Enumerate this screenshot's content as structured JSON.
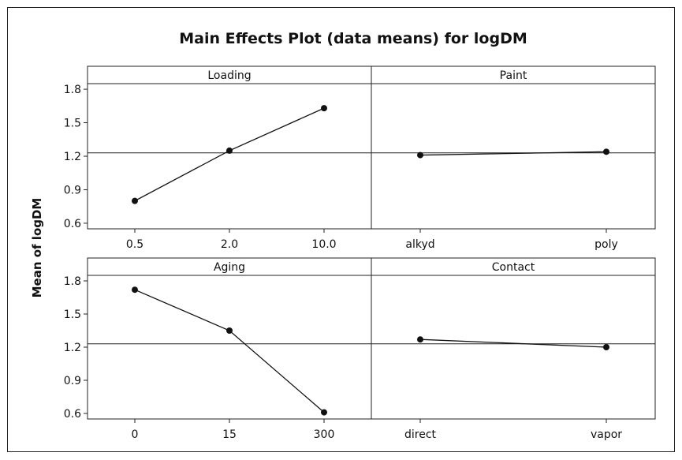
{
  "chart_data": {
    "type": "line",
    "title": "Main Effects Plot (data means) for logDM",
    "ylabel": "Mean of logDM",
    "grand_mean": 1.23,
    "ylim": [
      0.55,
      1.85
    ],
    "yticks": [
      "0.6",
      "0.9",
      "1.2",
      "1.5",
      "1.8"
    ],
    "panels": [
      {
        "name": "Loading",
        "categories": [
          "0.5",
          "2.0",
          "10.0"
        ],
        "values": [
          0.8,
          1.25,
          1.63
        ]
      },
      {
        "name": "Paint",
        "categories": [
          "alkyd",
          "poly"
        ],
        "values": [
          1.21,
          1.24
        ]
      },
      {
        "name": "Aging",
        "categories": [
          "0",
          "15",
          "300"
        ],
        "values": [
          1.72,
          1.35,
          0.61
        ]
      },
      {
        "name": "Contact",
        "categories": [
          "direct",
          "vapor"
        ],
        "values": [
          1.27,
          1.2
        ]
      }
    ]
  }
}
